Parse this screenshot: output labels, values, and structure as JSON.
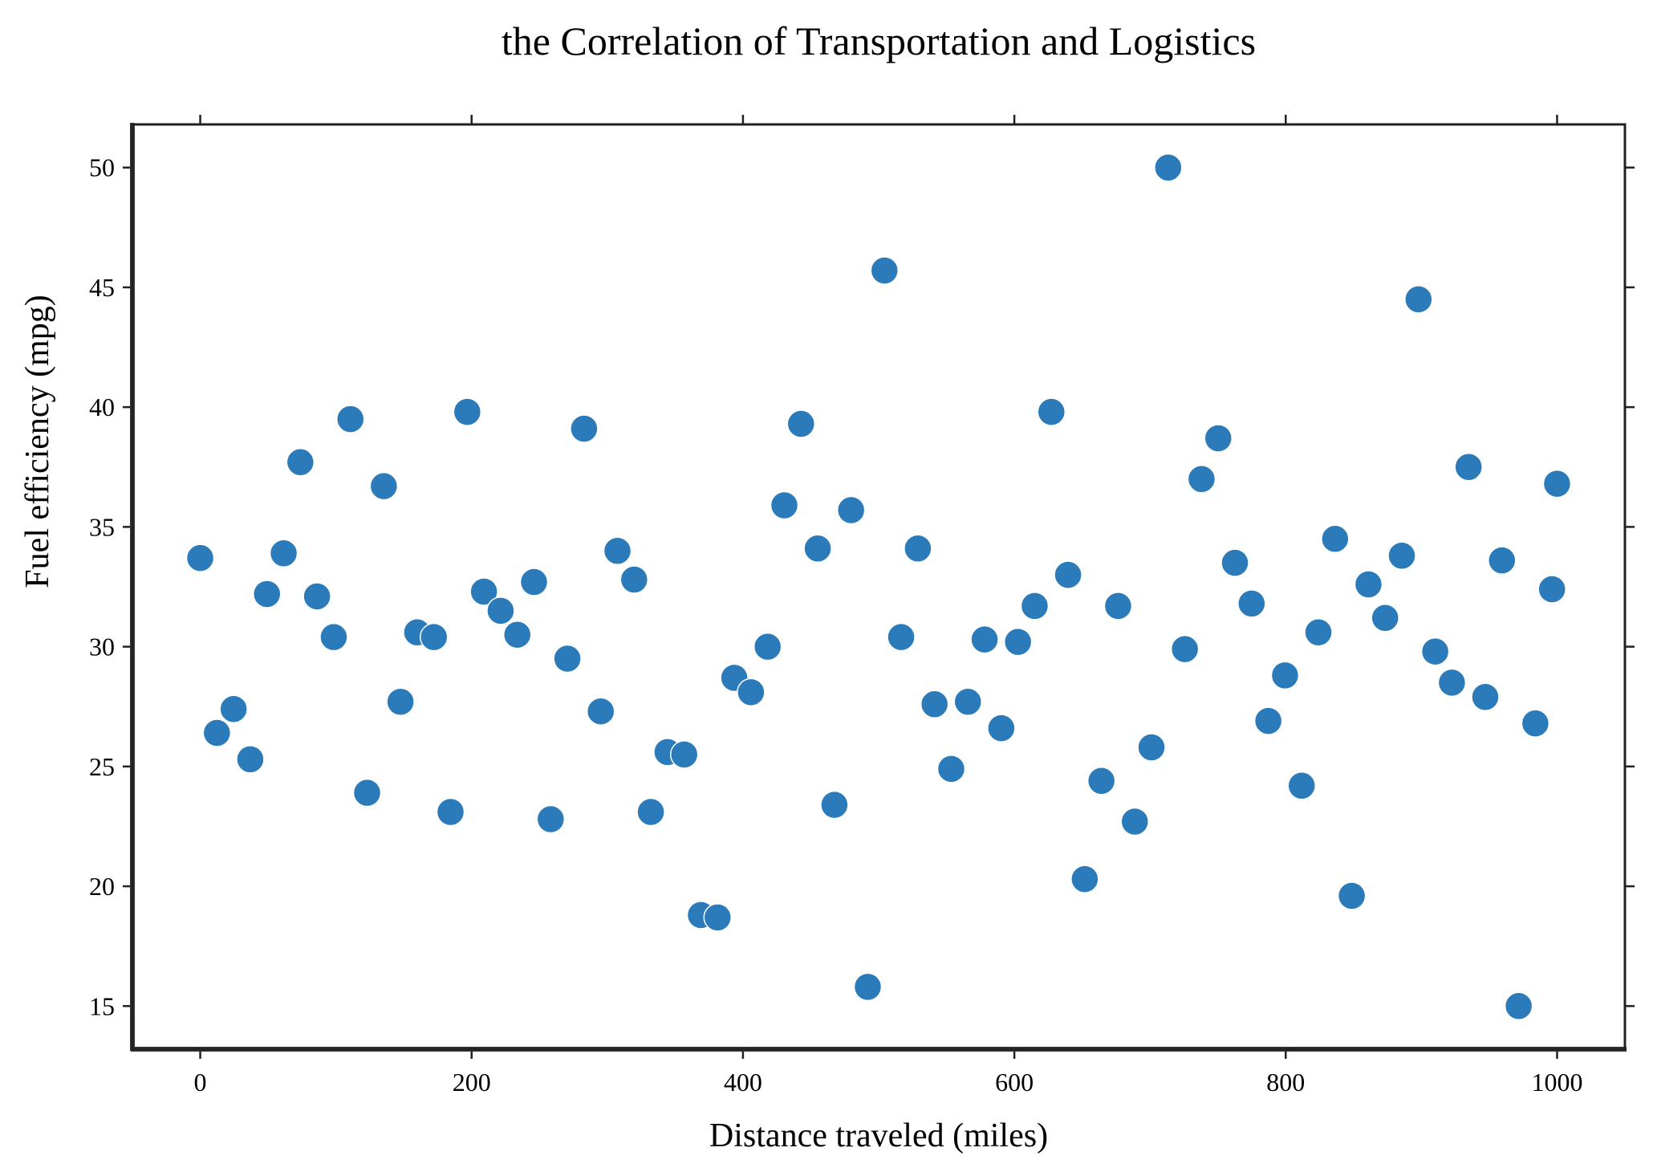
{
  "chart_data": {
    "type": "scatter",
    "title": "the Correlation of Transportation and Logistics",
    "xlabel": "Distance traveled (miles)",
    "ylabel": "Fuel efficiency (mpg)",
    "xlim": [
      -50,
      1050
    ],
    "ylim": [
      13.2,
      51.8
    ],
    "xticks": [
      0,
      200,
      400,
      600,
      800,
      1000
    ],
    "yticks": [
      15,
      20,
      25,
      30,
      35,
      40,
      45,
      50
    ],
    "grid": false,
    "marker_color": "#2b7bba",
    "marker_edge_color": "#ffffff",
    "points": [
      [
        0,
        33.7
      ],
      [
        12.3,
        26.4
      ],
      [
        24.6,
        27.4
      ],
      [
        36.9,
        25.3
      ],
      [
        49.2,
        32.2
      ],
      [
        61.5,
        33.9
      ],
      [
        73.8,
        37.7
      ],
      [
        86.1,
        32.1
      ],
      [
        98.4,
        30.4
      ],
      [
        110.7,
        39.5
      ],
      [
        123.0,
        23.9
      ],
      [
        135.3,
        36.7
      ],
      [
        147.6,
        27.7
      ],
      [
        159.9,
        30.6
      ],
      [
        172.2,
        30.4
      ],
      [
        184.5,
        23.1
      ],
      [
        196.8,
        39.8
      ],
      [
        209.1,
        32.3
      ],
      [
        221.4,
        31.5
      ],
      [
        233.7,
        30.5
      ],
      [
        246.0,
        32.7
      ],
      [
        258.3,
        22.8
      ],
      [
        270.6,
        29.5
      ],
      [
        282.9,
        39.1
      ],
      [
        295.2,
        27.3
      ],
      [
        307.5,
        34.0
      ],
      [
        319.8,
        32.8
      ],
      [
        332.1,
        23.1
      ],
      [
        344.4,
        25.6
      ],
      [
        356.7,
        25.5
      ],
      [
        369.0,
        18.8
      ],
      [
        381.3,
        18.7
      ],
      [
        393.6,
        28.7
      ],
      [
        405.9,
        28.1
      ],
      [
        418.2,
        30.0
      ],
      [
        430.5,
        35.9
      ],
      [
        442.8,
        39.3
      ],
      [
        455.1,
        34.1
      ],
      [
        467.4,
        23.4
      ],
      [
        479.7,
        35.7
      ],
      [
        492.0,
        15.8
      ],
      [
        504.3,
        45.7
      ],
      [
        516.6,
        30.4
      ],
      [
        528.9,
        34.1
      ],
      [
        541.2,
        27.6
      ],
      [
        553.5,
        24.9
      ],
      [
        565.8,
        27.7
      ],
      [
        578.1,
        30.3
      ],
      [
        590.4,
        26.6
      ],
      [
        602.7,
        30.2
      ],
      [
        615.0,
        31.7
      ],
      [
        627.3,
        39.8
      ],
      [
        639.6,
        33.0
      ],
      [
        651.9,
        20.3
      ],
      [
        664.2,
        24.4
      ],
      [
        676.5,
        31.7
      ],
      [
        688.8,
        22.7
      ],
      [
        701.1,
        25.8
      ],
      [
        713.4,
        50.0
      ],
      [
        725.7,
        29.9
      ],
      [
        738.0,
        37.0
      ],
      [
        750.3,
        38.7
      ],
      [
        762.6,
        33.5
      ],
      [
        774.9,
        31.8
      ],
      [
        787.2,
        26.9
      ],
      [
        799.5,
        28.8
      ],
      [
        811.8,
        24.2
      ],
      [
        824.1,
        30.6
      ],
      [
        836.4,
        34.5
      ],
      [
        848.7,
        19.6
      ],
      [
        861.0,
        32.6
      ],
      [
        873.3,
        31.2
      ],
      [
        885.6,
        33.8
      ],
      [
        897.9,
        44.5
      ],
      [
        910.2,
        29.8
      ],
      [
        922.5,
        28.5
      ],
      [
        934.8,
        37.5
      ],
      [
        947.1,
        27.9
      ],
      [
        959.4,
        33.6
      ],
      [
        971.7,
        15.0
      ],
      [
        984.0,
        26.8
      ],
      [
        996.3,
        32.4
      ],
      [
        1000.0,
        36.8
      ]
    ]
  }
}
